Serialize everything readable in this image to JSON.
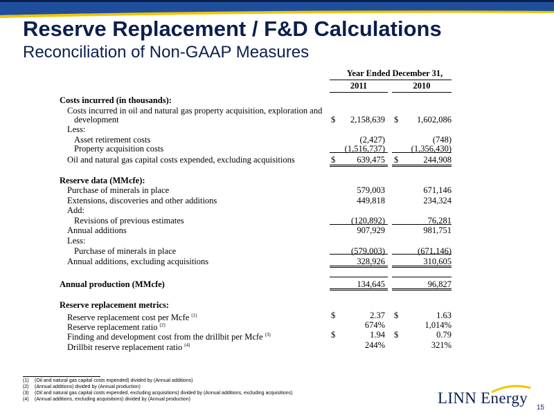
{
  "slide": {
    "title": "Reserve Replacement / F&D Calculations",
    "subtitle": "Reconciliation of Non-GAAP Measures",
    "page_number": "15",
    "logo_text": "LINN Energy",
    "colors": {
      "navy": "#0b1f4d",
      "yellow": "#f2c500",
      "band_blue": "#1f4e9c"
    }
  },
  "table": {
    "period_header": "Year Ended December 31,",
    "years": [
      "2011",
      "2010"
    ],
    "rows": [
      {
        "label": "Costs incurred (in thousands):",
        "bold": true,
        "indent": 0
      },
      {
        "label": "Costs incurred in oil and natural gas property acquisition, exploration and",
        "indent": 1
      },
      {
        "label": "development",
        "indent": 2,
        "d1": "$",
        "v1": "2,158,639",
        "d2": "$",
        "v2": "1,602,086"
      },
      {
        "label": "Less:",
        "indent": 1
      },
      {
        "label": "Asset retirement costs",
        "indent": 2,
        "v1": "(2,427)",
        "v2": "(748)"
      },
      {
        "label": "Property acquisition costs",
        "indent": 2,
        "v1": "(1,516,737)",
        "v2": "(1,356,430)"
      },
      {
        "label": "Oil and natural gas capital costs expended, excluding acquisitions",
        "indent": 1,
        "d1": "$",
        "v1": "639,475",
        "d2": "$",
        "v2": "244,908"
      },
      {
        "label": "Reserve data (MMcfe):",
        "bold": true,
        "indent": 0
      },
      {
        "label": "Purchase of minerals in place",
        "indent": 1,
        "v1": "579,003",
        "v2": "671,146"
      },
      {
        "label": "Extensions, discoveries and other additions",
        "indent": 1,
        "v1": "449,818",
        "v2": "234,324"
      },
      {
        "label": "Add:",
        "indent": 1
      },
      {
        "label": "Revisions of previous estimates",
        "indent": 2,
        "v1": "(120,892)",
        "v2": "76,281"
      },
      {
        "label": "Annual additions",
        "indent": 1,
        "v1": "907,929",
        "v2": "981,751"
      },
      {
        "label": "Less:",
        "indent": 1
      },
      {
        "label": "Purchase of minerals in place",
        "indent": 2,
        "v1": "(579,003)",
        "v2": "(671,146)"
      },
      {
        "label": "Annual additions, excluding acquisitions",
        "indent": 1,
        "v1": "328,926",
        "v2": "310,605"
      },
      {
        "label": "Annual production (MMcfe)",
        "bold": true,
        "indent": 0,
        "v1": "134,645",
        "v2": "96,827"
      },
      {
        "label": "Reserve replacement metrics:",
        "bold": true,
        "indent": 0
      },
      {
        "label": "Reserve replacement cost per Mcfe",
        "sup": "(1)",
        "indent": 1,
        "d1": "$",
        "v1": "2.37",
        "d2": "$",
        "v2": "1.63"
      },
      {
        "label": "Reserve replacement ratio",
        "sup": "(2)",
        "indent": 1,
        "v1": "674%",
        "v2": "1,014%"
      },
      {
        "label": "Finding and development cost from the drillbit per Mcfe",
        "sup": "(3)",
        "indent": 1,
        "d1": "$",
        "v1": "1.94",
        "d2": "$",
        "v2": "0.79"
      },
      {
        "label": "Drillbit reserve replacement ratio",
        "sup": "(4)",
        "indent": 1,
        "v1": "244%",
        "v2": "321%"
      }
    ]
  },
  "footnotes": [
    {
      "num": "(1)",
      "text": "(Oil and natural gas capital costs expended) divided by (Annual additions)"
    },
    {
      "num": "(2)",
      "text": "(Annual additions) divided by (Annual production)"
    },
    {
      "num": "(3)",
      "text": "(Oil and natural gas capital costs expended, excluding acquisitions) divided by (Annual additions, excluding acquisitions)"
    },
    {
      "num": "(4)",
      "text": "(Annual additions, excluding acquisitions) divided by (Annual production)"
    }
  ]
}
